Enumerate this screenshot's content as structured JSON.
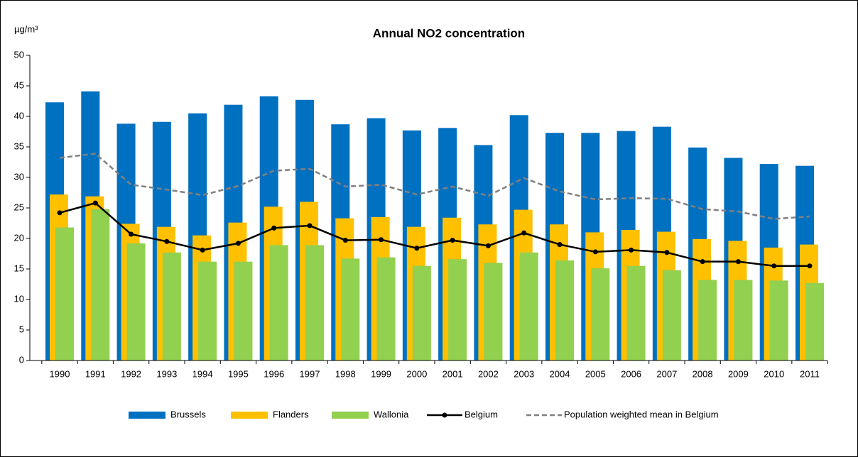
{
  "chart_data": {
    "type": "bar",
    "title": "Annual NO2 concentration",
    "y_label": "µg/m³",
    "categories": [
      "1990",
      "1991",
      "1992",
      "1993",
      "1994",
      "1995",
      "1996",
      "1997",
      "1998",
      "1999",
      "2000",
      "2001",
      "2002",
      "2003",
      "2004",
      "2005",
      "2006",
      "2007",
      "2008",
      "2009",
      "2010",
      "2011"
    ],
    "ylim": [
      0,
      50
    ],
    "yticks": [
      0,
      5,
      10,
      15,
      20,
      25,
      30,
      35,
      40,
      45,
      50
    ],
    "grid": false,
    "legend": "bottom",
    "series": [
      {
        "name": "Brussels",
        "type": "bar",
        "color": "#0070c0",
        "values": [
          42.3,
          44.1,
          38.8,
          39.1,
          40.5,
          41.9,
          43.3,
          42.7,
          38.7,
          39.7,
          37.7,
          38.1,
          35.3,
          40.2,
          37.3,
          37.3,
          37.6,
          38.3,
          34.9,
          33.2,
          32.2,
          31.9
        ]
      },
      {
        "name": "Flanders",
        "type": "bar",
        "color": "#ffc000",
        "values": [
          27.2,
          26.9,
          22.4,
          21.9,
          20.5,
          22.6,
          25.2,
          26.0,
          23.3,
          23.5,
          21.9,
          23.4,
          22.3,
          24.7,
          22.3,
          21.0,
          21.4,
          21.1,
          19.9,
          19.6,
          18.5,
          19.0
        ]
      },
      {
        "name": "Wallonia",
        "type": "bar",
        "color": "#92d050",
        "values": [
          21.8,
          24.8,
          19.2,
          17.7,
          16.2,
          16.2,
          18.9,
          18.9,
          16.7,
          16.9,
          15.5,
          16.6,
          16.0,
          17.7,
          16.4,
          15.1,
          15.5,
          14.8,
          13.2,
          13.2,
          13.1,
          12.7
        ]
      },
      {
        "name": "Belgium",
        "type": "line",
        "color": "#000000",
        "markers": true,
        "values": [
          24.2,
          25.8,
          20.7,
          19.5,
          18.1,
          19.2,
          21.7,
          22.1,
          19.7,
          19.8,
          18.4,
          19.7,
          18.8,
          20.9,
          19.0,
          17.8,
          18.1,
          17.7,
          16.2,
          16.2,
          15.5,
          15.5
        ]
      },
      {
        "name": "Population weighted mean in Belgium",
        "type": "line",
        "color": "#808080",
        "dashed": true,
        "values": [
          33.2,
          33.9,
          28.8,
          28.0,
          27.1,
          28.6,
          31.1,
          31.4,
          28.5,
          28.8,
          27.2,
          28.5,
          27.0,
          29.9,
          27.7,
          26.4,
          26.6,
          26.5,
          24.8,
          24.4,
          23.2,
          23.6
        ]
      }
    ]
  }
}
